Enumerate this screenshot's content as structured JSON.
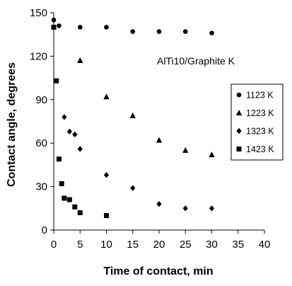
{
  "chart_data": {
    "type": "scatter",
    "xlabel": "Time of contact, min",
    "ylabel": "Contact angle, degrees",
    "annotation": "AlTi10/Graphite K",
    "xlim": [
      0,
      40
    ],
    "ylim": [
      0,
      150
    ],
    "xticks": [
      0,
      5,
      10,
      15,
      20,
      25,
      30,
      35,
      40
    ],
    "yticks": [
      0,
      30,
      60,
      90,
      120,
      150
    ],
    "grid": false,
    "legend_position": "right",
    "series": [
      {
        "name": "1123 K",
        "marker": "circle",
        "color": "#000000",
        "points": [
          [
            0,
            145
          ],
          [
            1,
            141
          ],
          [
            5,
            140
          ],
          [
            10,
            140
          ],
          [
            15,
            137
          ],
          [
            20,
            137
          ],
          [
            25,
            137
          ],
          [
            30,
            136
          ]
        ]
      },
      {
        "name": "1223 K",
        "marker": "triangle",
        "color": "#000000",
        "points": [
          [
            5,
            117
          ],
          [
            10,
            92
          ],
          [
            15,
            79
          ],
          [
            20,
            62
          ],
          [
            25,
            55
          ],
          [
            30,
            52
          ]
        ]
      },
      {
        "name": "1323 K",
        "marker": "diamond",
        "color": "#000000",
        "points": [
          [
            2,
            78
          ],
          [
            3,
            68
          ],
          [
            4,
            66
          ],
          [
            5,
            56
          ],
          [
            10,
            38
          ],
          [
            15,
            29
          ],
          [
            20,
            18
          ],
          [
            25,
            15
          ],
          [
            30,
            15
          ]
        ]
      },
      {
        "name": "1423 K",
        "marker": "square",
        "color": "#000000",
        "points": [
          [
            0,
            140
          ],
          [
            0.5,
            103
          ],
          [
            1,
            49
          ],
          [
            1.5,
            32
          ],
          [
            2,
            22
          ],
          [
            3,
            21
          ],
          [
            4,
            16
          ],
          [
            5,
            12
          ],
          [
            10,
            10
          ]
        ]
      }
    ]
  }
}
